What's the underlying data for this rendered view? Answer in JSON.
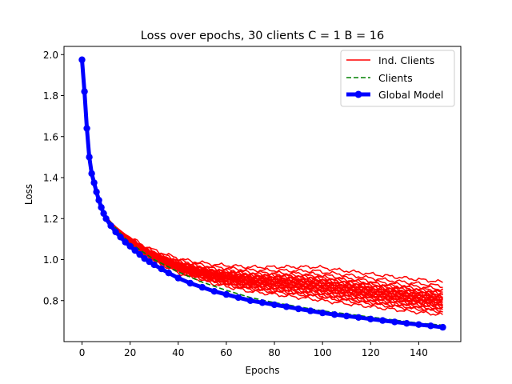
{
  "chart_data": {
    "type": "line",
    "title": "Loss over epochs, 30 clients C = 1 B = 16",
    "xlabel": "Epochs",
    "ylabel": "Loss",
    "xlim": [
      -7.5,
      157.5
    ],
    "ylim": [
      0.6,
      2.04
    ],
    "xticks": [
      0,
      20,
      40,
      60,
      80,
      100,
      120,
      140
    ],
    "yticks": [
      0.8,
      1.0,
      1.2,
      1.4,
      1.6,
      1.8,
      2.0
    ],
    "grid": false,
    "legend_position": "top-right",
    "legend": [
      "Ind. Clients",
      "Clients",
      "Global Model"
    ],
    "colors": {
      "ind_clients": "#ff0000",
      "clients": "#008000",
      "global_model": "#0000ff"
    },
    "series": [
      {
        "name": "Ind. Clients",
        "style": "solid",
        "color": "#ff0000",
        "count": 30,
        "plateaus": [
          0.89,
          0.87,
          0.855,
          0.845,
          0.84,
          0.835,
          0.83,
          0.825,
          0.82,
          0.82,
          0.815,
          0.81,
          0.81,
          0.805,
          0.8,
          0.8,
          0.795,
          0.79,
          0.79,
          0.785,
          0.78,
          0.78,
          0.775,
          0.77,
          0.765,
          0.76,
          0.755,
          0.75,
          0.745,
          0.73
        ]
      },
      {
        "name": "Clients",
        "style": "dashed",
        "color": "#008000",
        "x": [
          0,
          2,
          4,
          6,
          8,
          10,
          15,
          20,
          30,
          40,
          50,
          60,
          70,
          80,
          90,
          100,
          110,
          120,
          130,
          140,
          150
        ],
        "y": [
          1.97,
          1.65,
          1.42,
          1.31,
          1.25,
          1.21,
          1.14,
          1.08,
          1.0,
          0.94,
          0.89,
          0.85,
          0.815,
          0.79,
          0.77,
          0.75,
          0.735,
          0.72,
          0.705,
          0.69,
          0.68
        ]
      },
      {
        "name": "Global Model",
        "style": "solid-markers",
        "color": "#0000ff",
        "x": [
          0,
          1,
          2,
          3,
          4,
          5,
          6,
          7,
          8,
          9,
          10,
          12,
          14,
          16,
          18,
          20,
          22,
          24,
          26,
          28,
          30,
          33,
          36,
          40,
          45,
          50,
          55,
          60,
          65,
          70,
          75,
          80,
          85,
          90,
          95,
          100,
          105,
          110,
          115,
          120,
          125,
          130,
          135,
          140,
          145,
          150
        ],
        "y": [
          1.975,
          1.82,
          1.64,
          1.5,
          1.42,
          1.375,
          1.33,
          1.29,
          1.255,
          1.225,
          1.2,
          1.165,
          1.135,
          1.11,
          1.085,
          1.065,
          1.045,
          1.025,
          1.005,
          0.99,
          0.975,
          0.955,
          0.935,
          0.91,
          0.885,
          0.865,
          0.845,
          0.83,
          0.815,
          0.8,
          0.79,
          0.78,
          0.77,
          0.76,
          0.75,
          0.74,
          0.732,
          0.725,
          0.718,
          0.71,
          0.703,
          0.696,
          0.689,
          0.683,
          0.677,
          0.67
        ]
      }
    ]
  }
}
